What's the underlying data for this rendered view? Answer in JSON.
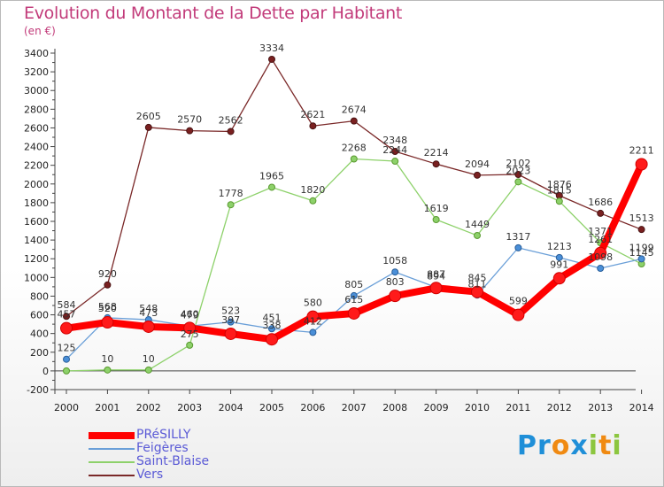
{
  "header": {
    "title": "Evolution du Montant de la Dette par Habitant",
    "unit": "(en €)"
  },
  "logo": {
    "text": "Proxiti"
  },
  "chart_data": {
    "type": "line",
    "title": "Evolution du Montant de la Dette par Habitant",
    "subtitle": "(en €)",
    "xlabel": "",
    "ylabel": "",
    "categories": [
      "2000",
      "2001",
      "2002",
      "2003",
      "2004",
      "2005",
      "2006",
      "2007",
      "2008",
      "2009",
      "2010",
      "2011",
      "2012",
      "2013",
      "2014"
    ],
    "ylim": [
      -200,
      3400
    ],
    "yticks": [
      -200,
      0,
      200,
      400,
      600,
      800,
      1000,
      1200,
      1400,
      1600,
      1800,
      2000,
      2200,
      2400,
      2600,
      2800,
      3000,
      3200,
      3400
    ],
    "grid": false,
    "legend_position": "bottom-left",
    "series": [
      {
        "name": "Vers",
        "color": "#7a2828",
        "values": [
          584,
          920,
          2605,
          2570,
          2562,
          3334,
          2621,
          2674,
          2348,
          2214,
          2094,
          2102,
          1876,
          1686,
          1513
        ],
        "labels": [
          "584",
          "920",
          "2605",
          "2570",
          "2562",
          "3334",
          "2621",
          "2674",
          "2348",
          "2214",
          "2094",
          "2102",
          "1876",
          "1686",
          "1513"
        ]
      },
      {
        "name": "Saint-Blaise",
        "color": "#8dd16a",
        "values": [
          0,
          10,
          10,
          275,
          1778,
          1965,
          1820,
          2268,
          2244,
          1619,
          1449,
          2023,
          1815,
          1371,
          1145
        ],
        "labels": [
          "",
          "10",
          "10",
          "275",
          "1778",
          "1965",
          "1820",
          "2268",
          "2244",
          "1619",
          "1449",
          "2023",
          "1815",
          "1371",
          "1145"
        ]
      },
      {
        "name": "Feigères",
        "color": "#6a9fd8",
        "values": [
          125,
          568,
          548,
          479,
          523,
          451,
          412,
          805,
          1058,
          894,
          811,
          1317,
          1213,
          1098,
          1199
        ],
        "labels": [
          "125",
          "568",
          "548",
          "479",
          "523",
          "451",
          "412",
          "805",
          "1058",
          "894",
          "811",
          "1317",
          "1213",
          "1098",
          "1199"
        ]
      },
      {
        "name": "PRéSILLY",
        "color": "#ff0000",
        "values": [
          457,
          520,
          473,
          460,
          397,
          338,
          580,
          615,
          803,
          887,
          845,
          599,
          991,
          1261,
          2211
        ],
        "labels": [
          "457",
          "520",
          "473",
          "460",
          "397",
          "338",
          "580",
          "615",
          "803",
          "887",
          "845",
          "599",
          "991",
          "1261",
          "2211"
        ]
      }
    ]
  }
}
